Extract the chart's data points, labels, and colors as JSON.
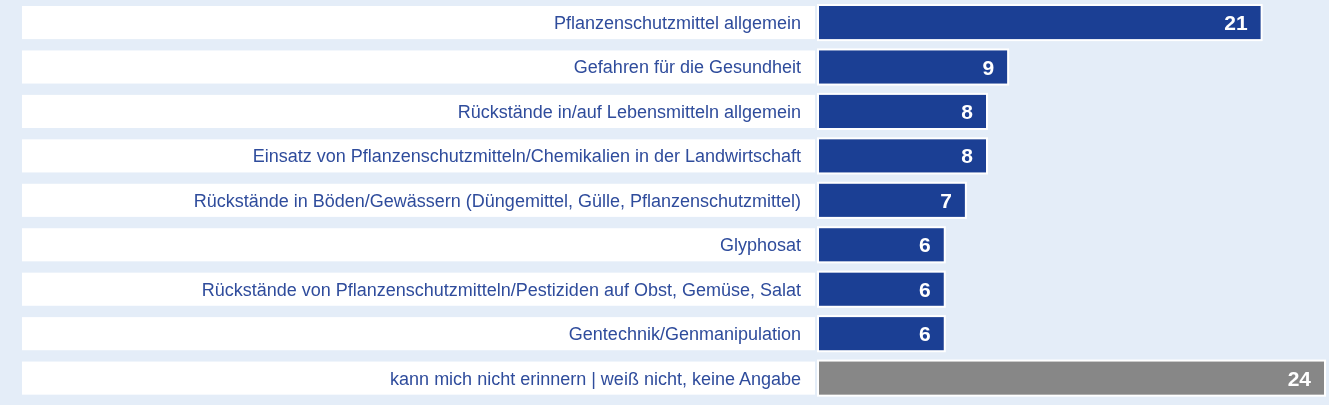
{
  "chart_data": {
    "type": "bar",
    "orientation": "horizontal",
    "data_labels": true,
    "categories": [
      "Pflanzenschutzmittel allgemein",
      "Gefahren für die Gesundheit",
      "Rückstände in/auf Lebensmitteln allgemein",
      "Einsatz von Pflanzenschutzmitteln/Chemikalien in der Landwirtschaft",
      "Rückstände in Böden/Gewässern (Düngemittel, Gülle, Pflanzenschutzmittel)",
      "Glyphosat",
      "Rückstände von Pflanzenschutzmitteln/Pestiziden auf Obst, Gemüse, Salat",
      "Gentechnik/Genmanipulation",
      "kann mich nicht erinnern | weiß nicht, keine Angabe"
    ],
    "values": [
      21,
      9,
      8,
      8,
      7,
      6,
      6,
      6,
      24
    ],
    "colors": [
      "#1b3f94",
      "#1b3f94",
      "#1b3f94",
      "#1b3f94",
      "#1b3f94",
      "#1b3f94",
      "#1b3f94",
      "#1b3f94",
      "#878787"
    ]
  }
}
